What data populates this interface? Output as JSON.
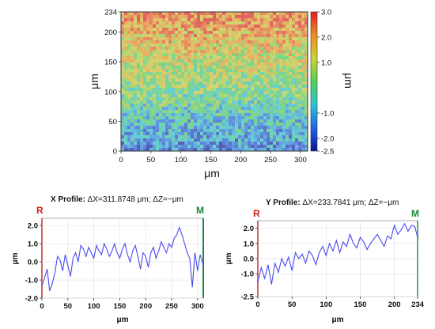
{
  "chart_data": [
    {
      "type": "heatmap",
      "xlabel": "μm",
      "ylabel": "μm",
      "x_ticks": [
        "0",
        "50",
        "100",
        "150",
        "200",
        "250",
        "300"
      ],
      "y_ticks": [
        "0",
        "50",
        "100",
        "150",
        "200",
        "234"
      ],
      "xlim": [
        0,
        312
      ],
      "ylim": [
        0,
        234
      ],
      "colorbar": {
        "label": "μm",
        "range": [
          -2.5,
          3.0
        ],
        "ticks": [
          "3.0",
          "2.0",
          "1.0",
          "-1.0",
          "-2.0",
          "-2.5"
        ],
        "colors": [
          "#0a14a0",
          "#1e64e6",
          "#28c8d2",
          "#50d250",
          "#d2d232",
          "#f08c1e",
          "#e61e1e"
        ]
      },
      "height_trend": {
        "y": [
          0,
          50,
          100,
          150,
          200,
          234
        ],
        "z": [
          -1.6,
          -0.8,
          0.2,
          1.0,
          1.8,
          2.3
        ]
      }
    },
    {
      "type": "line",
      "title_bold": "X Profile:",
      "title_rest": " ΔX=311.8748 μm; ΔZ=−μm",
      "xlabel": "μm",
      "ylabel": "μm",
      "x_ticks": [
        "0",
        "50",
        "100",
        "150",
        "200",
        "250",
        "300"
      ],
      "y_ticks": [
        "2.0",
        "1.0",
        "0.0",
        "-1.0",
        "-2.0"
      ],
      "xlim": [
        0,
        311
      ],
      "ylim": [
        -2.0,
        2.4
      ],
      "marker_left": "R",
      "marker_right": "M",
      "series": [
        {
          "color": "#4a4af0",
          "x": [
            0,
            5,
            10,
            15,
            20,
            25,
            30,
            35,
            40,
            45,
            50,
            55,
            60,
            65,
            70,
            75,
            80,
            85,
            90,
            95,
            100,
            105,
            110,
            115,
            120,
            125,
            130,
            135,
            140,
            145,
            150,
            155,
            160,
            165,
            170,
            175,
            180,
            185,
            190,
            195,
            200,
            205,
            210,
            215,
            220,
            225,
            230,
            235,
            240,
            245,
            250,
            255,
            260,
            265,
            270,
            275,
            280,
            285,
            290,
            295,
            300,
            305,
            311
          ],
          "y": [
            -1.3,
            -0.9,
            -0.4,
            -1.6,
            -1.2,
            -0.6,
            0.3,
            0.1,
            -0.5,
            0.4,
            -0.2,
            -0.8,
            0.2,
            0.5,
            0.0,
            0.9,
            0.7,
            0.3,
            0.8,
            0.5,
            0.2,
            0.9,
            0.6,
            0.4,
            1.0,
            0.7,
            0.3,
            0.6,
            1.0,
            0.5,
            0.2,
            0.7,
            1.0,
            0.4,
            0.0,
            0.6,
            0.9,
            0.3,
            -0.4,
            0.5,
            0.3,
            -0.3,
            0.5,
            0.8,
            0.2,
            0.6,
            1.1,
            0.8,
            0.5,
            1.0,
            0.8,
            1.3,
            1.5,
            1.9,
            1.5,
            1.0,
            0.5,
            0.2,
            -1.4,
            0.5,
            -0.5,
            0.4,
            -0.2
          ]
        }
      ]
    },
    {
      "type": "line",
      "title_bold": "Y Profile:",
      "title_rest": " ΔX=233.7841 μm; ΔZ=−μm",
      "xlabel": "μm",
      "ylabel": "μm",
      "x_ticks": [
        "0",
        "50",
        "100",
        "150",
        "200",
        "234"
      ],
      "y_ticks": [
        "2.0",
        "1.0",
        "0.0",
        "-1.0",
        "-2.5"
      ],
      "xlim": [
        0,
        234
      ],
      "ylim": [
        -2.5,
        2.5
      ],
      "marker_left": "R",
      "marker_right": "M",
      "series": [
        {
          "color": "#4a4af0",
          "x": [
            0,
            5,
            10,
            15,
            20,
            25,
            30,
            35,
            40,
            45,
            50,
            55,
            60,
            65,
            70,
            75,
            80,
            85,
            90,
            95,
            100,
            105,
            110,
            115,
            120,
            125,
            130,
            135,
            140,
            145,
            150,
            155,
            160,
            165,
            170,
            175,
            180,
            185,
            190,
            195,
            200,
            205,
            210,
            215,
            220,
            225,
            230,
            234
          ],
          "y": [
            -1.5,
            -0.6,
            -1.3,
            -0.4,
            -1.7,
            -0.3,
            -0.9,
            0.0,
            -0.5,
            0.1,
            -0.8,
            0.4,
            0.0,
            0.3,
            -0.3,
            0.5,
            0.2,
            -0.4,
            0.4,
            0.8,
            0.2,
            1.0,
            0.5,
            1.2,
            0.4,
            1.1,
            0.8,
            1.6,
            1.0,
            0.7,
            1.4,
            1.1,
            0.6,
            1.0,
            1.3,
            1.6,
            1.2,
            0.8,
            1.5,
            1.3,
            2.2,
            1.6,
            1.9,
            2.3,
            1.8,
            2.2,
            2.1,
            1.4
          ]
        }
      ]
    }
  ]
}
